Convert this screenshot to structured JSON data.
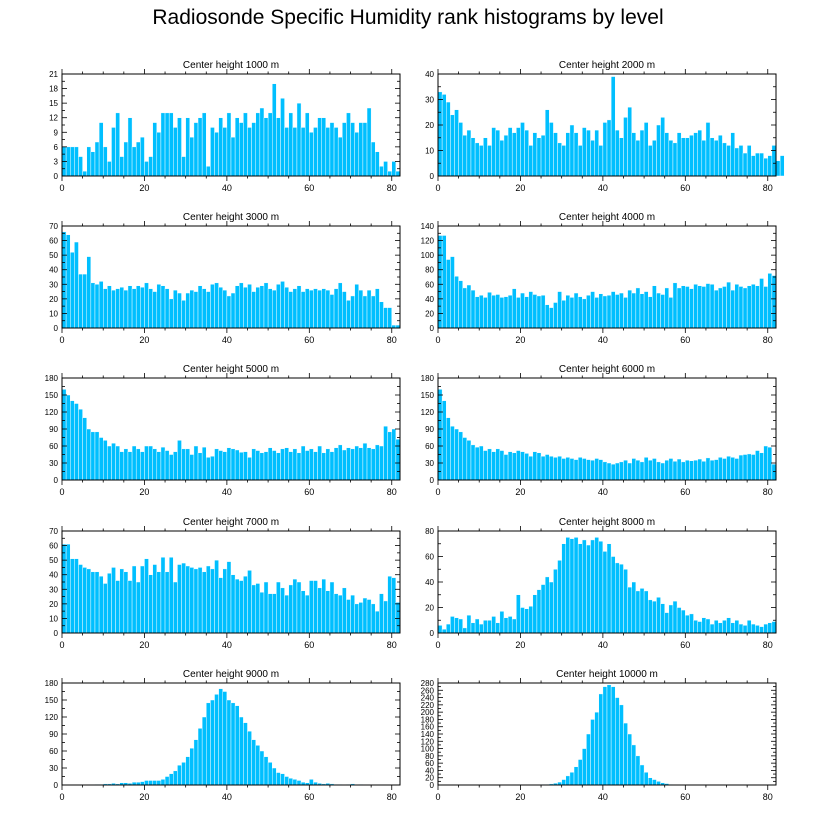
{
  "figure_title": "Radiosonde Specific Humidity rank histograms by level",
  "colors": {
    "bar": "#00BFFF",
    "bar_edge": "#ffffff",
    "axis": "#000000"
  },
  "chart_data": [
    {
      "type": "bar",
      "title": "Center height 1000 m",
      "x_ticks": [
        0,
        20,
        40,
        60,
        80
      ],
      "xlim": [
        0,
        82
      ],
      "y_ticks": [
        0,
        3,
        6,
        9,
        12,
        15,
        18,
        21
      ],
      "ylim": [
        0,
        21
      ],
      "values": [
        6,
        6,
        6,
        6,
        4,
        1,
        6,
        5,
        7,
        11,
        6,
        3,
        10,
        13,
        4,
        7,
        12,
        6,
        7,
        8,
        3,
        4,
        11,
        9,
        13,
        13,
        13,
        10,
        12,
        4,
        12,
        8,
        11,
        12,
        13,
        2,
        10,
        9,
        12,
        10,
        13,
        8,
        12,
        11,
        13,
        10,
        11,
        13,
        14,
        12,
        13,
        19,
        12,
        16,
        10,
        13,
        10,
        15,
        10,
        13,
        9,
        10,
        12,
        12,
        10,
        11,
        10,
        8,
        11,
        13,
        11,
        9,
        11,
        11,
        14,
        7,
        5,
        2,
        3,
        1,
        3,
        1
      ]
    },
    {
      "type": "bar",
      "title": "Center height 2000 m",
      "x_ticks": [
        0,
        20,
        40,
        60,
        80
      ],
      "xlim": [
        0,
        82
      ],
      "y_ticks": [
        0,
        10,
        20,
        30,
        40
      ],
      "ylim": [
        0,
        40
      ],
      "values": [
        33,
        32,
        29,
        24,
        26,
        21,
        16,
        18,
        15,
        13,
        12,
        15,
        12,
        19,
        18,
        14,
        16,
        19,
        17,
        19,
        21,
        18,
        12,
        17,
        15,
        16,
        26,
        21,
        17,
        13,
        12,
        17,
        20,
        17,
        12,
        19,
        18,
        14,
        18,
        12,
        21,
        22,
        39,
        18,
        15,
        23,
        27,
        17,
        14,
        18,
        21,
        12,
        14,
        20,
        23,
        17,
        14,
        13,
        17,
        15,
        15,
        16,
        17,
        18,
        14,
        21,
        15,
        14,
        16,
        13,
        12,
        17,
        11,
        12,
        9,
        12,
        8,
        9,
        9,
        7,
        8,
        12,
        6,
        8
      ]
    },
    {
      "type": "bar",
      "title": "Center height 3000 m",
      "x_ticks": [
        0,
        20,
        40,
        60,
        80
      ],
      "xlim": [
        0,
        82
      ],
      "y_ticks": [
        0,
        10,
        20,
        30,
        40,
        50,
        60,
        70
      ],
      "ylim": [
        0,
        70
      ],
      "values": [
        66,
        64,
        52,
        59,
        37,
        37,
        49,
        31,
        30,
        32,
        27,
        29,
        26,
        27,
        28,
        26,
        29,
        27,
        29,
        28,
        31,
        27,
        25,
        30,
        29,
        27,
        20,
        26,
        24,
        19,
        24,
        26,
        25,
        29,
        27,
        25,
        30,
        31,
        28,
        26,
        22,
        24,
        29,
        31,
        28,
        30,
        25,
        28,
        29,
        31,
        27,
        26,
        30,
        32,
        28,
        25,
        27,
        29,
        25,
        27,
        26,
        27,
        26,
        27,
        26,
        23,
        27,
        31,
        25,
        19,
        22,
        30,
        26,
        22,
        26,
        22,
        27,
        18,
        14,
        14,
        2,
        2
      ]
    },
    {
      "type": "bar",
      "title": "Center height 4000 m",
      "x_ticks": [
        0,
        20,
        40,
        60,
        80
      ],
      "xlim": [
        0,
        82
      ],
      "y_ticks": [
        0,
        20,
        40,
        60,
        80,
        100,
        120,
        140
      ],
      "ylim": [
        0,
        140
      ],
      "values": [
        127,
        127,
        94,
        98,
        71,
        65,
        55,
        59,
        52,
        43,
        45,
        42,
        49,
        45,
        46,
        42,
        43,
        45,
        54,
        42,
        48,
        43,
        50,
        46,
        44,
        45,
        32,
        28,
        35,
        50,
        38,
        45,
        42,
        48,
        43,
        40,
        45,
        50,
        42,
        47,
        44,
        45,
        50,
        46,
        48,
        42,
        52,
        48,
        55,
        47,
        50,
        43,
        58,
        48,
        46,
        55,
        42,
        62,
        55,
        58,
        57,
        54,
        60,
        58,
        57,
        61,
        60,
        52,
        55,
        57,
        63,
        52,
        60,
        57,
        55,
        58,
        60,
        58,
        68,
        57,
        75,
        72
      ]
    },
    {
      "type": "bar",
      "title": "Center height 5000 m",
      "x_ticks": [
        0,
        20,
        40,
        60,
        80
      ],
      "xlim": [
        0,
        82
      ],
      "y_ticks": [
        0,
        30,
        60,
        90,
        120,
        150,
        180
      ],
      "ylim": [
        0,
        180
      ],
      "values": [
        160,
        150,
        140,
        135,
        125,
        110,
        90,
        85,
        85,
        75,
        70,
        60,
        65,
        60,
        50,
        55,
        50,
        60,
        55,
        50,
        60,
        60,
        55,
        50,
        58,
        52,
        45,
        50,
        70,
        55,
        55,
        45,
        60,
        48,
        58,
        40,
        42,
        55,
        52,
        50,
        57,
        55,
        53,
        49,
        50,
        40,
        55,
        52,
        48,
        50,
        57,
        52,
        48,
        55,
        57,
        50,
        55,
        48,
        60,
        52,
        55,
        50,
        60,
        48,
        55,
        50,
        57,
        62,
        53,
        57,
        55,
        60,
        57,
        65,
        57,
        55,
        62,
        60,
        95,
        85,
        90,
        72
      ]
    },
    {
      "type": "bar",
      "title": "Center height 6000 m",
      "x_ticks": [
        0,
        20,
        40,
        60,
        80
      ],
      "xlim": [
        0,
        82
      ],
      "y_ticks": [
        0,
        30,
        60,
        90,
        120,
        150,
        180
      ],
      "ylim": [
        0,
        180
      ],
      "values": [
        160,
        140,
        110,
        95,
        90,
        85,
        75,
        70,
        62,
        58,
        60,
        52,
        55,
        50,
        55,
        52,
        45,
        50,
        48,
        52,
        50,
        47,
        42,
        50,
        48,
        42,
        45,
        42,
        40,
        42,
        38,
        40,
        38,
        36,
        40,
        38,
        36,
        35,
        38,
        36,
        32,
        30,
        28,
        30,
        32,
        35,
        30,
        38,
        35,
        32,
        40,
        35,
        38,
        32,
        30,
        35,
        38,
        33,
        37,
        32,
        35,
        34,
        35,
        37,
        33,
        39,
        35,
        36,
        40,
        38,
        42,
        40,
        38,
        44,
        45,
        46,
        45,
        52,
        48,
        60,
        58,
        28
      ]
    },
    {
      "type": "bar",
      "title": "Center height 7000 m",
      "x_ticks": [
        0,
        20,
        40,
        60,
        80
      ],
      "xlim": [
        0,
        82
      ],
      "y_ticks": [
        0,
        10,
        20,
        30,
        40,
        50,
        60,
        70
      ],
      "ylim": [
        0,
        70
      ],
      "values": [
        61,
        61,
        51,
        51,
        47,
        45,
        44,
        42,
        42,
        39,
        34,
        41,
        45,
        36,
        44,
        42,
        36,
        46,
        35,
        46,
        51,
        40,
        47,
        42,
        52,
        42,
        52,
        35,
        47,
        48,
        46,
        45,
        44,
        45,
        42,
        46,
        44,
        50,
        38,
        44,
        49,
        40,
        37,
        36,
        39,
        43,
        33,
        34,
        28,
        35,
        27,
        27,
        35,
        31,
        26,
        33,
        37,
        35,
        29,
        26,
        36,
        36,
        31,
        37,
        29,
        35,
        27,
        26,
        31,
        23,
        26,
        20,
        21,
        24,
        23,
        20,
        15,
        27,
        22,
        39,
        38,
        21
      ]
    },
    {
      "type": "bar",
      "title": "Center height 8000 m",
      "x_ticks": [
        0,
        20,
        40,
        60,
        80
      ],
      "xlim": [
        0,
        82
      ],
      "y_ticks": [
        0,
        20,
        40,
        60,
        80
      ],
      "ylim": [
        0,
        80
      ],
      "values": [
        6,
        3,
        7,
        13,
        12,
        11,
        4,
        14,
        8,
        11,
        7,
        10,
        10,
        13,
        8,
        17,
        12,
        13,
        11,
        30,
        20,
        19,
        21,
        30,
        34,
        38,
        44,
        40,
        50,
        57,
        70,
        75,
        74,
        75,
        70,
        73,
        69,
        73,
        75,
        72,
        64,
        70,
        60,
        55,
        54,
        50,
        36,
        40,
        33,
        35,
        33,
        26,
        25,
        28,
        23,
        16,
        22,
        25,
        20,
        18,
        14,
        15,
        10,
        9,
        12,
        11,
        7,
        10,
        8,
        10,
        12,
        8,
        10,
        7,
        6,
        10,
        7,
        6,
        5,
        7,
        8,
        9
      ]
    },
    {
      "type": "bar",
      "title": "Center height 9000 m",
      "x_ticks": [
        0,
        20,
        40,
        60,
        80
      ],
      "xlim": [
        0,
        82
      ],
      "y_ticks": [
        0,
        30,
        60,
        90,
        120,
        150,
        180
      ],
      "ylim": [
        0,
        180
      ],
      "values": [
        0,
        0,
        0,
        0,
        0,
        0,
        0,
        0,
        1,
        1,
        2,
        2,
        3,
        2,
        4,
        4,
        3,
        5,
        5,
        6,
        8,
        8,
        8,
        8,
        10,
        15,
        20,
        25,
        35,
        40,
        50,
        65,
        80,
        100,
        120,
        145,
        150,
        160,
        170,
        165,
        150,
        145,
        140,
        120,
        110,
        95,
        80,
        70,
        60,
        50,
        40,
        30,
        22,
        20,
        15,
        12,
        10,
        8,
        5,
        4,
        10,
        5,
        3,
        2,
        3,
        2,
        1,
        1,
        0,
        1,
        2,
        0,
        1,
        0,
        0,
        0,
        0,
        0,
        0,
        0,
        0,
        0
      ]
    },
    {
      "type": "bar",
      "title": "Center height 10000 m",
      "x_ticks": [
        0,
        20,
        40,
        60,
        80
      ],
      "xlim": [
        0,
        82
      ],
      "y_ticks": [
        0,
        20,
        40,
        60,
        80,
        100,
        120,
        140,
        160,
        180,
        200,
        220,
        240,
        260,
        280
      ],
      "ylim": [
        0,
        280
      ],
      "values": [
        0,
        0,
        0,
        0,
        0,
        0,
        0,
        0,
        0,
        0,
        0,
        0,
        0,
        0,
        0,
        0,
        0,
        0,
        0,
        0,
        0,
        0,
        0,
        0,
        1,
        2,
        2,
        3,
        5,
        8,
        15,
        25,
        35,
        50,
        70,
        100,
        140,
        180,
        200,
        250,
        270,
        275,
        270,
        240,
        220,
        170,
        140,
        110,
        80,
        55,
        35,
        20,
        15,
        10,
        6,
        4,
        2,
        1,
        1,
        0,
        0,
        0,
        0,
        0,
        0,
        0,
        0,
        0,
        0,
        0,
        0,
        0,
        0,
        0,
        0,
        0,
        0,
        0,
        0,
        0,
        0,
        0
      ]
    }
  ]
}
